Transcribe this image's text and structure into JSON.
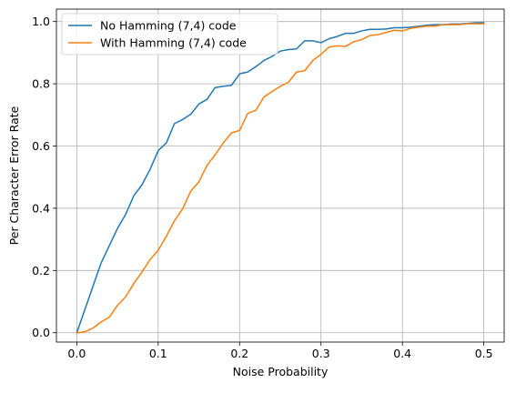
{
  "chart_data": {
    "type": "line",
    "title": "",
    "xlabel": "Noise Probability",
    "ylabel": "Per Character Error Rate",
    "xlim": [
      -0.025,
      0.525
    ],
    "ylim": [
      -0.03,
      1.04
    ],
    "xticks": [
      0.0,
      0.1,
      0.2,
      0.3,
      0.4,
      0.5
    ],
    "xtick_labels": [
      "0.0",
      "0.1",
      "0.2",
      "0.3",
      "0.4",
      "0.5"
    ],
    "yticks": [
      0.0,
      0.2,
      0.4,
      0.6,
      0.8,
      1.0
    ],
    "ytick_labels": [
      "0.0",
      "0.2",
      "0.4",
      "0.6",
      "0.8",
      "1.0"
    ],
    "grid": true,
    "legend": "top-left",
    "x": [
      0.0,
      0.01,
      0.02,
      0.03,
      0.04,
      0.05,
      0.06,
      0.07,
      0.08,
      0.09,
      0.1,
      0.11,
      0.12,
      0.13,
      0.14,
      0.15,
      0.16,
      0.17,
      0.18,
      0.19,
      0.2,
      0.21,
      0.22,
      0.23,
      0.24,
      0.25,
      0.26,
      0.27,
      0.28,
      0.29,
      0.3,
      0.31,
      0.32,
      0.33,
      0.34,
      0.35,
      0.36,
      0.37,
      0.38,
      0.39,
      0.4,
      0.41,
      0.42,
      0.43,
      0.44,
      0.45,
      0.46,
      0.47,
      0.48,
      0.49,
      0.5
    ],
    "series": [
      {
        "name": "No Hamming (7,4) code",
        "color": "#1f77b4",
        "values": [
          0.0,
          0.075,
          0.15,
          0.225,
          0.28,
          0.335,
          0.38,
          0.44,
          0.475,
          0.525,
          0.585,
          0.61,
          0.672,
          0.685,
          0.702,
          0.735,
          0.75,
          0.788,
          0.792,
          0.795,
          0.832,
          0.838,
          0.855,
          0.875,
          0.888,
          0.905,
          0.91,
          0.912,
          0.938,
          0.938,
          0.932,
          0.945,
          0.952,
          0.962,
          0.962,
          0.97,
          0.975,
          0.975,
          0.976,
          0.98,
          0.98,
          0.982,
          0.985,
          0.988,
          0.99,
          0.99,
          0.992,
          0.992,
          0.994,
          0.996,
          0.996
        ]
      },
      {
        "name": "With Hamming (7,4) code",
        "color": "#ff7f0e",
        "values": [
          0.0,
          0.003,
          0.015,
          0.035,
          0.05,
          0.088,
          0.115,
          0.158,
          0.195,
          0.235,
          0.265,
          0.31,
          0.36,
          0.398,
          0.455,
          0.485,
          0.538,
          0.572,
          0.61,
          0.642,
          0.65,
          0.705,
          0.715,
          0.758,
          0.775,
          0.792,
          0.805,
          0.838,
          0.842,
          0.875,
          0.895,
          0.918,
          0.922,
          0.92,
          0.935,
          0.942,
          0.955,
          0.958,
          0.965,
          0.972,
          0.97,
          0.978,
          0.982,
          0.985,
          0.985,
          0.99,
          0.99,
          0.99,
          0.993,
          0.993,
          0.993
        ]
      }
    ]
  }
}
